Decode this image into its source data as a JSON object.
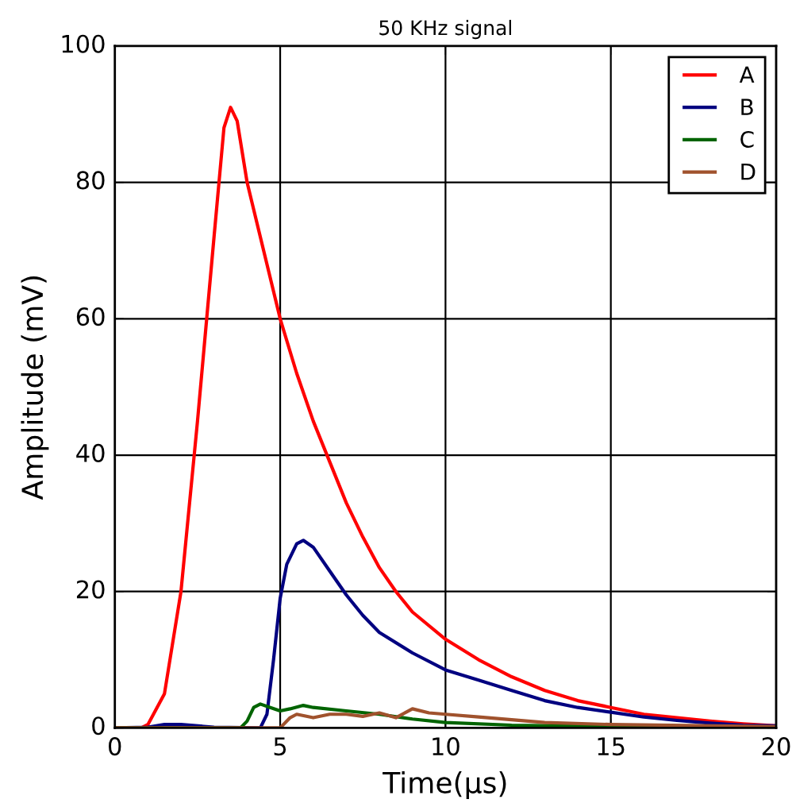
{
  "chart_data": {
    "type": "line",
    "title": "50 KHz signal",
    "xlabel": "Time(μs)",
    "ylabel": "Amplitude (mV)",
    "xlim": [
      0,
      20
    ],
    "ylim": [
      0,
      100
    ],
    "xticks": [
      0,
      5,
      10,
      15,
      20
    ],
    "yticks": [
      0,
      20,
      40,
      60,
      80,
      100
    ],
    "grid": true,
    "legend": "top right",
    "marker": "none",
    "line_style": "solid",
    "series": [
      {
        "name": "A",
        "color": "#ff0000",
        "x": [
          0,
          0.8,
          1,
          1.5,
          2,
          2.5,
          3,
          3.3,
          3.5,
          3.7,
          4,
          4.5,
          5,
          5.5,
          6,
          6.5,
          7,
          7.5,
          8,
          8.5,
          9,
          10,
          11,
          12,
          13,
          14,
          15,
          16,
          17,
          18,
          19,
          20
        ],
        "values": [
          0,
          0,
          0.5,
          5,
          20,
          45,
          72,
          88,
          91,
          89,
          80,
          70,
          60,
          52,
          45,
          39,
          33,
          28,
          23.5,
          20,
          17,
          13,
          10,
          7.5,
          5.5,
          4,
          3,
          2,
          1.5,
          1,
          0.6,
          0.3
        ]
      },
      {
        "name": "B",
        "color": "#000080",
        "x": [
          0,
          1,
          1.5,
          2,
          3,
          4.4,
          4.6,
          4.8,
          5,
          5.2,
          5.5,
          5.7,
          6,
          6.5,
          7,
          7.5,
          8,
          9,
          10,
          11,
          12,
          13,
          14,
          15,
          16,
          17,
          18,
          19,
          20
        ],
        "values": [
          0,
          0.1,
          0.5,
          0.5,
          0.1,
          0,
          2,
          10,
          19,
          24,
          27,
          27.5,
          26.5,
          23,
          19.5,
          16.5,
          14,
          11,
          8.5,
          7,
          5.5,
          4,
          3,
          2.3,
          1.6,
          1.1,
          0.7,
          0.4,
          0.3
        ]
      },
      {
        "name": "C",
        "color": "#006400",
        "x": [
          0,
          3.8,
          4,
          4.2,
          4.4,
          4.7,
          5,
          5.3,
          5.7,
          6,
          7,
          8,
          9,
          10,
          12,
          15,
          20
        ],
        "values": [
          0,
          0,
          1,
          3,
          3.5,
          3,
          2.5,
          2.8,
          3.3,
          3,
          2.5,
          2,
          1.3,
          0.8,
          0.4,
          0.2,
          0.1
        ]
      },
      {
        "name": "D",
        "color": "#a0522d",
        "x": [
          0,
          5,
          5.3,
          5.5,
          6,
          6.5,
          7,
          7.5,
          8,
          8.5,
          9,
          9.5,
          10,
          11,
          12,
          13,
          15,
          20
        ],
        "values": [
          0,
          0,
          1.5,
          2,
          1.5,
          2,
          2,
          1.7,
          2.2,
          1.5,
          2.8,
          2.2,
          2,
          1.6,
          1.2,
          0.8,
          0.5,
          0.2
        ]
      }
    ]
  }
}
